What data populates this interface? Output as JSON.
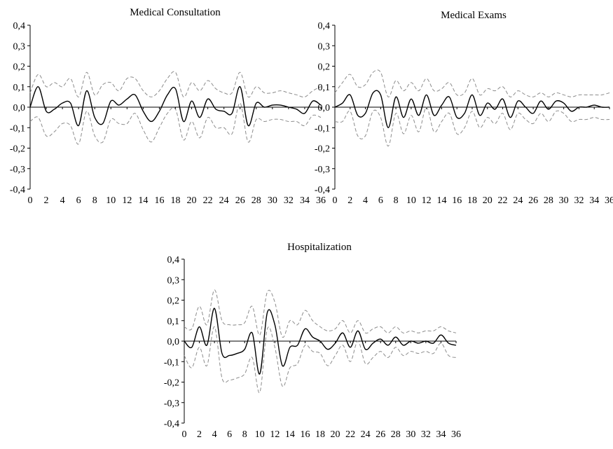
{
  "chart_data": [
    {
      "type": "line",
      "title": "Medical Consultation",
      "xlabel": "",
      "ylabel": "",
      "xlim": [
        0,
        36
      ],
      "ylim": [
        -0.4,
        0.4
      ],
      "x_ticks": [
        0,
        2,
        4,
        6,
        8,
        10,
        12,
        14,
        16,
        18,
        20,
        22,
        24,
        26,
        28,
        30,
        32,
        34,
        36
      ],
      "y_ticks": [
        "0,4",
        "0,3",
        "0,2",
        "0,1",
        "0,0",
        "-0,1",
        "-0,2",
        "-0,3",
        "-0,4"
      ],
      "x": [
        0,
        1,
        2,
        3,
        4,
        5,
        6,
        7,
        8,
        9,
        10,
        11,
        12,
        13,
        14,
        15,
        16,
        17,
        18,
        19,
        20,
        21,
        22,
        23,
        24,
        25,
        26,
        27,
        28,
        29,
        30,
        31,
        32,
        33,
        34,
        35,
        36
      ],
      "series": [
        {
          "values": [
            0.0,
            0.1,
            -0.02,
            -0.01,
            0.02,
            0.02,
            -0.09,
            0.08,
            -0.05,
            -0.08,
            0.03,
            0.01,
            0.04,
            0.06,
            -0.02,
            -0.07,
            -0.02,
            0.06,
            0.09,
            -0.07,
            0.03,
            -0.05,
            0.04,
            -0.01,
            -0.02,
            -0.03,
            0.1,
            -0.09,
            0.02,
            0.0,
            0.01,
            0.01,
            0.0,
            -0.01,
            -0.03,
            0.03,
            0.01
          ]
        },
        {
          "values": [
            0.07,
            0.16,
            0.1,
            0.12,
            0.1,
            0.14,
            0.05,
            0.17,
            0.06,
            0.11,
            0.12,
            0.08,
            0.14,
            0.14,
            0.08,
            0.05,
            0.08,
            0.14,
            0.17,
            0.05,
            0.12,
            0.08,
            0.13,
            0.09,
            0.07,
            0.07,
            0.17,
            0.05,
            0.1,
            0.07,
            0.07,
            0.08,
            0.07,
            0.06,
            0.05,
            0.08,
            0.1
          ]
        },
        {
          "values": [
            -0.07,
            -0.05,
            -0.14,
            -0.12,
            -0.08,
            -0.09,
            -0.18,
            -0.02,
            -0.14,
            -0.17,
            -0.06,
            -0.08,
            -0.08,
            -0.03,
            -0.11,
            -0.17,
            -0.1,
            -0.03,
            -0.01,
            -0.16,
            -0.07,
            -0.15,
            -0.05,
            -0.1,
            -0.1,
            -0.13,
            0.02,
            -0.17,
            -0.06,
            -0.07,
            -0.06,
            -0.06,
            -0.07,
            -0.07,
            -0.09,
            -0.04,
            -0.05
          ]
        }
      ],
      "grid": false,
      "legend": "none"
    },
    {
      "type": "line",
      "title": "Medical Exams",
      "xlabel": "",
      "ylabel": "",
      "xlim": [
        0,
        36
      ],
      "ylim": [
        -0.4,
        0.4
      ],
      "x_ticks": [
        0,
        2,
        4,
        6,
        8,
        10,
        12,
        14,
        16,
        18,
        20,
        22,
        24,
        26,
        28,
        30,
        32,
        34,
        36
      ],
      "y_ticks": [
        "0,4",
        "0,3",
        "0,2",
        "0,1",
        "0,0",
        "-0,1",
        "-0,2",
        "-0,3",
        "-0,4"
      ],
      "x": [
        0,
        1,
        2,
        3,
        4,
        5,
        6,
        7,
        8,
        9,
        10,
        11,
        12,
        13,
        14,
        15,
        16,
        17,
        18,
        19,
        20,
        21,
        22,
        23,
        24,
        25,
        26,
        27,
        28,
        29,
        30,
        31,
        32,
        33,
        34,
        35,
        36
      ],
      "series": [
        {
          "values": [
            0.0,
            0.02,
            0.06,
            -0.04,
            -0.03,
            0.07,
            0.06,
            -0.1,
            0.05,
            -0.05,
            0.04,
            -0.04,
            0.06,
            -0.04,
            0.01,
            0.05,
            -0.05,
            -0.03,
            0.06,
            -0.04,
            0.02,
            -0.01,
            0.04,
            -0.05,
            0.03,
            0.0,
            -0.03,
            0.03,
            -0.01,
            0.03,
            0.02,
            -0.02,
            0.0,
            0.0,
            0.01,
            0.0,
            0.0
          ]
        },
        {
          "values": [
            0.07,
            0.12,
            0.16,
            0.1,
            0.11,
            0.17,
            0.17,
            0.05,
            0.13,
            0.08,
            0.12,
            0.08,
            0.14,
            0.08,
            0.09,
            0.12,
            0.06,
            0.07,
            0.14,
            0.06,
            0.09,
            0.08,
            0.1,
            0.05,
            0.08,
            0.06,
            0.05,
            0.07,
            0.05,
            0.07,
            0.06,
            0.05,
            0.06,
            0.06,
            0.06,
            0.06,
            0.07
          ]
        },
        {
          "values": [
            -0.07,
            -0.07,
            -0.02,
            -0.14,
            -0.14,
            -0.02,
            -0.05,
            -0.19,
            -0.03,
            -0.13,
            -0.04,
            -0.12,
            0.0,
            -0.12,
            -0.07,
            -0.03,
            -0.13,
            -0.1,
            -0.02,
            -0.1,
            -0.05,
            -0.08,
            -0.03,
            -0.11,
            -0.03,
            -0.06,
            -0.08,
            -0.03,
            -0.07,
            -0.02,
            -0.03,
            -0.07,
            -0.06,
            -0.06,
            -0.05,
            -0.06,
            -0.06
          ]
        }
      ],
      "grid": false,
      "legend": "none"
    },
    {
      "type": "line",
      "title": "Hospitalization",
      "xlabel": "",
      "ylabel": "",
      "xlim": [
        0,
        36
      ],
      "ylim": [
        -0.4,
        0.4
      ],
      "x_ticks": [
        0,
        2,
        4,
        6,
        8,
        10,
        12,
        14,
        16,
        18,
        20,
        22,
        24,
        26,
        28,
        30,
        32,
        34,
        36
      ],
      "y_ticks": [
        "0,4",
        "0,3",
        "0,2",
        "0,1",
        "0,0",
        "-0,1",
        "-0,2",
        "-0,3",
        "-0,4"
      ],
      "x": [
        0,
        1,
        2,
        3,
        4,
        5,
        6,
        7,
        8,
        9,
        10,
        11,
        12,
        13,
        14,
        15,
        16,
        17,
        18,
        19,
        20,
        21,
        22,
        23,
        24,
        25,
        26,
        27,
        28,
        29,
        30,
        31,
        32,
        33,
        34,
        35,
        36
      ],
      "series": [
        {
          "values": [
            0.0,
            -0.03,
            0.07,
            -0.02,
            0.16,
            -0.06,
            -0.07,
            -0.06,
            -0.04,
            0.04,
            -0.16,
            0.14,
            0.08,
            -0.12,
            -0.03,
            -0.02,
            0.06,
            0.02,
            0.0,
            -0.04,
            -0.01,
            0.04,
            -0.03,
            0.05,
            -0.04,
            -0.01,
            0.01,
            -0.02,
            0.02,
            -0.02,
            0.0,
            -0.01,
            0.0,
            -0.01,
            0.03,
            -0.01,
            -0.02
          ]
        },
        {
          "values": [
            0.07,
            0.06,
            0.17,
            0.08,
            0.25,
            0.1,
            0.08,
            0.08,
            0.09,
            0.17,
            0.03,
            0.24,
            0.19,
            0.02,
            0.1,
            0.08,
            0.15,
            0.1,
            0.07,
            0.05,
            0.06,
            0.1,
            0.04,
            0.1,
            0.04,
            0.06,
            0.07,
            0.04,
            0.07,
            0.04,
            0.05,
            0.04,
            0.05,
            0.05,
            0.07,
            0.05,
            0.04
          ]
        },
        {
          "values": [
            -0.07,
            -0.13,
            -0.03,
            -0.12,
            0.07,
            -0.18,
            -0.19,
            -0.18,
            -0.16,
            -0.08,
            -0.25,
            0.06,
            -0.03,
            -0.22,
            -0.13,
            -0.11,
            -0.02,
            -0.05,
            -0.06,
            -0.12,
            -0.07,
            -0.02,
            -0.1,
            0.0,
            -0.11,
            -0.08,
            -0.05,
            -0.08,
            -0.03,
            -0.07,
            -0.05,
            -0.06,
            -0.05,
            -0.06,
            -0.01,
            -0.07,
            -0.08
          ]
        }
      ],
      "grid": false,
      "legend": "none"
    }
  ]
}
